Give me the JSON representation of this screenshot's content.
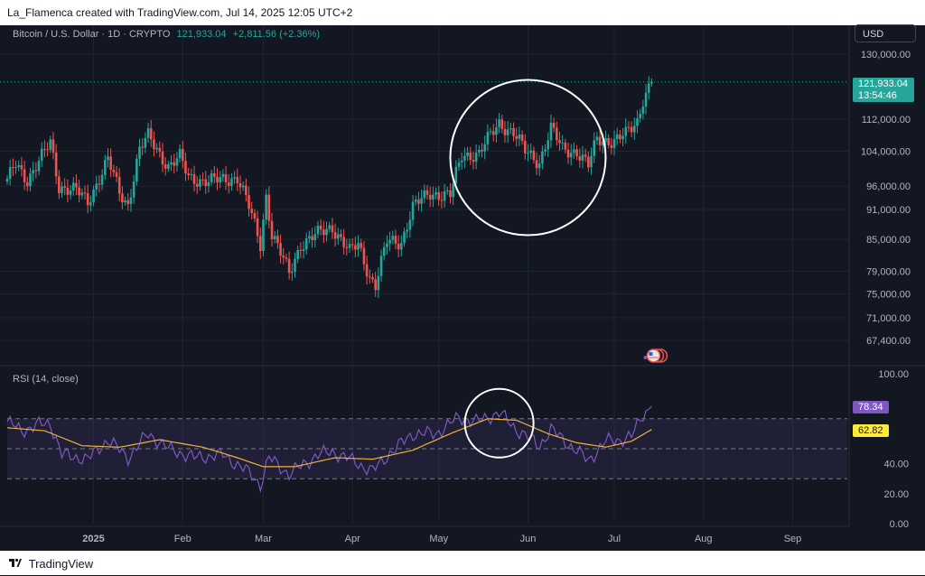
{
  "header": {
    "attribution": "La_Flamenca created with TradingView.com, Jul 14, 2025 12:05 UTC+2"
  },
  "legend": {
    "symbol": "Bitcoin / U.S. Dollar · 1D · CRYPTO",
    "price": "121,933.04",
    "change": "+2,811.56 (+2.36%)"
  },
  "currency_button": "USD",
  "price_tag": {
    "price": "121,933.04",
    "countdown": "13:54:46"
  },
  "rsi_title": "RSI (14, close)",
  "rsi_tags": {
    "rsi": "78.34",
    "ma": "62.82"
  },
  "footer": {
    "brand": "TradingView"
  },
  "colors": {
    "up": "#26a69a",
    "down": "#ef5350",
    "rsi": "#7e57c2",
    "rsi_ma": "#f0b23a",
    "background": "#131722"
  },
  "chart_data": [
    {
      "type": "candlestick",
      "title": "Bitcoin / U.S. Dollar · 1D · CRYPTO",
      "y_scale": "log",
      "y_ticks": [
        130000,
        112000,
        104000,
        96000,
        91000,
        85000,
        79000,
        75000,
        71000,
        67400
      ],
      "y_tick_labels": [
        "130,000.00",
        "112,000.00",
        "104,000.00",
        "96,000.00",
        "91,000.00",
        "85,000.00",
        "79,000.00",
        "75,000.00",
        "71,000.00",
        "67,400.00"
      ],
      "ylim": [
        64000,
        136000
      ],
      "x_range": [
        "2024-12-02",
        "2025-09-20"
      ],
      "x_ticks": [
        {
          "date": "2025-01-01",
          "label": "2025"
        },
        {
          "date": "2025-02-01",
          "label": "Feb"
        },
        {
          "date": "2025-03-01",
          "label": "Mar"
        },
        {
          "date": "2025-04-01",
          "label": "Apr"
        },
        {
          "date": "2025-05-01",
          "label": "May"
        },
        {
          "date": "2025-06-01",
          "label": "Jun"
        },
        {
          "date": "2025-07-01",
          "label": "Jul"
        },
        {
          "date": "2025-08-01",
          "label": "Aug"
        },
        {
          "date": "2025-09-01",
          "label": "Sep"
        }
      ],
      "last_price": 121933.04,
      "price_path": [
        {
          "date": "2024-12-02",
          "price": 97000
        },
        {
          "date": "2024-12-05",
          "price": 101000
        },
        {
          "date": "2024-12-09",
          "price": 97500
        },
        {
          "date": "2024-12-13",
          "price": 101500
        },
        {
          "date": "2024-12-17",
          "price": 106000
        },
        {
          "date": "2024-12-20",
          "price": 96000
        },
        {
          "date": "2024-12-26",
          "price": 95000
        },
        {
          "date": "2024-12-30",
          "price": 92500
        },
        {
          "date": "2025-01-06",
          "price": 102000
        },
        {
          "date": "2025-01-10",
          "price": 94500
        },
        {
          "date": "2025-01-13",
          "price": 92000
        },
        {
          "date": "2025-01-17",
          "price": 104500
        },
        {
          "date": "2025-01-20",
          "price": 107500
        },
        {
          "date": "2025-01-27",
          "price": 100500
        },
        {
          "date": "2025-01-31",
          "price": 102500
        },
        {
          "date": "2025-02-03",
          "price": 98000
        },
        {
          "date": "2025-02-10",
          "price": 97000
        },
        {
          "date": "2025-02-20",
          "price": 98000
        },
        {
          "date": "2025-02-24",
          "price": 91500
        },
        {
          "date": "2025-02-28",
          "price": 84000
        },
        {
          "date": "2025-03-02",
          "price": 94000
        },
        {
          "date": "2025-03-04",
          "price": 86000
        },
        {
          "date": "2025-03-10",
          "price": 78500
        },
        {
          "date": "2025-03-14",
          "price": 84000
        },
        {
          "date": "2025-03-20",
          "price": 86000
        },
        {
          "date": "2025-03-25",
          "price": 87500
        },
        {
          "date": "2025-03-31",
          "price": 82500
        },
        {
          "date": "2025-04-03",
          "price": 84000
        },
        {
          "date": "2025-04-07",
          "price": 78000
        },
        {
          "date": "2025-04-09",
          "price": 76500
        },
        {
          "date": "2025-04-13",
          "price": 84500
        },
        {
          "date": "2025-04-18",
          "price": 84500
        },
        {
          "date": "2025-04-22",
          "price": 91500
        },
        {
          "date": "2025-04-28",
          "price": 94500
        },
        {
          "date": "2025-05-05",
          "price": 94000
        },
        {
          "date": "2025-05-09",
          "price": 103000
        },
        {
          "date": "2025-05-15",
          "price": 103500
        },
        {
          "date": "2025-05-22",
          "price": 111000
        },
        {
          "date": "2025-05-27",
          "price": 108500
        },
        {
          "date": "2025-05-31",
          "price": 104000
        },
        {
          "date": "2025-06-05",
          "price": 101500
        },
        {
          "date": "2025-06-09",
          "price": 109500
        },
        {
          "date": "2025-06-13",
          "price": 104500
        },
        {
          "date": "2025-06-18",
          "price": 104000
        },
        {
          "date": "2025-06-22",
          "price": 100500
        },
        {
          "date": "2025-06-25",
          "price": 107000
        },
        {
          "date": "2025-07-01",
          "price": 106500
        },
        {
          "date": "2025-07-05",
          "price": 108000
        },
        {
          "date": "2025-07-09",
          "price": 111500
        },
        {
          "date": "2025-07-11",
          "price": 117500
        },
        {
          "date": "2025-07-14",
          "price": 121933
        }
      ],
      "annotations": [
        {
          "type": "circle",
          "center_date": "2025-06-01",
          "center_price": 102500,
          "note": "highlighted consolidation"
        }
      ]
    },
    {
      "type": "line",
      "title": "RSI (14, close)",
      "ylim": [
        0,
        100
      ],
      "y_ticks": [
        100,
        40,
        20,
        0
      ],
      "y_tick_labels": [
        "100.00",
        "40.00",
        "20.00",
        "0.00"
      ],
      "bands": [
        30,
        50,
        70
      ],
      "band_fill": [
        30,
        70
      ],
      "series": [
        {
          "name": "RSI",
          "color": "#7e57c2",
          "points": [
            {
              "date": "2024-12-02",
              "value": 68
            },
            {
              "date": "2024-12-07",
              "value": 62
            },
            {
              "date": "2024-12-13",
              "value": 66
            },
            {
              "date": "2024-12-17",
              "value": 67
            },
            {
              "date": "2024-12-21",
              "value": 46
            },
            {
              "date": "2024-12-30",
              "value": 43
            },
            {
              "date": "2025-01-06",
              "value": 56
            },
            {
              "date": "2025-01-13",
              "value": 44
            },
            {
              "date": "2025-01-20",
              "value": 60
            },
            {
              "date": "2025-01-27",
              "value": 50
            },
            {
              "date": "2025-02-05",
              "value": 44
            },
            {
              "date": "2025-02-15",
              "value": 46
            },
            {
              "date": "2025-02-24",
              "value": 34
            },
            {
              "date": "2025-02-28",
              "value": 26
            },
            {
              "date": "2025-03-03",
              "value": 44
            },
            {
              "date": "2025-03-10",
              "value": 33
            },
            {
              "date": "2025-03-20",
              "value": 46
            },
            {
              "date": "2025-03-25",
              "value": 48
            },
            {
              "date": "2025-04-01",
              "value": 42
            },
            {
              "date": "2025-04-08",
              "value": 35
            },
            {
              "date": "2025-04-14",
              "value": 47
            },
            {
              "date": "2025-04-22",
              "value": 60
            },
            {
              "date": "2025-04-30",
              "value": 60
            },
            {
              "date": "2025-05-08",
              "value": 71
            },
            {
              "date": "2025-05-14",
              "value": 68
            },
            {
              "date": "2025-05-22",
              "value": 74
            },
            {
              "date": "2025-05-28",
              "value": 63
            },
            {
              "date": "2025-06-05",
              "value": 52
            },
            {
              "date": "2025-06-09",
              "value": 63
            },
            {
              "date": "2025-06-17",
              "value": 50
            },
            {
              "date": "2025-06-22",
              "value": 42
            },
            {
              "date": "2025-06-28",
              "value": 55
            },
            {
              "date": "2025-07-03",
              "value": 56
            },
            {
              "date": "2025-07-07",
              "value": 58
            },
            {
              "date": "2025-07-11",
              "value": 73
            },
            {
              "date": "2025-07-14",
              "value": 78.34
            }
          ]
        },
        {
          "name": "RSI-based MA",
          "color": "#f0b23a",
          "points": [
            {
              "date": "2024-12-02",
              "value": 64
            },
            {
              "date": "2024-12-15",
              "value": 62
            },
            {
              "date": "2024-12-28",
              "value": 52
            },
            {
              "date": "2025-01-10",
              "value": 51
            },
            {
              "date": "2025-01-24",
              "value": 56
            },
            {
              "date": "2025-02-08",
              "value": 51
            },
            {
              "date": "2025-02-20",
              "value": 44
            },
            {
              "date": "2025-03-01",
              "value": 38
            },
            {
              "date": "2025-03-12",
              "value": 38
            },
            {
              "date": "2025-03-26",
              "value": 44
            },
            {
              "date": "2025-04-08",
              "value": 43
            },
            {
              "date": "2025-04-22",
              "value": 49
            },
            {
              "date": "2025-05-05",
              "value": 60
            },
            {
              "date": "2025-05-18",
              "value": 70
            },
            {
              "date": "2025-05-28",
              "value": 69
            },
            {
              "date": "2025-06-08",
              "value": 60
            },
            {
              "date": "2025-06-18",
              "value": 54
            },
            {
              "date": "2025-06-28",
              "value": 51
            },
            {
              "date": "2025-07-07",
              "value": 55
            },
            {
              "date": "2025-07-14",
              "value": 62.82
            }
          ]
        }
      ],
      "annotations": [
        {
          "type": "circle",
          "center_date": "2025-05-22",
          "center_value": 67,
          "note": "highlighted RSI peak"
        }
      ]
    }
  ]
}
